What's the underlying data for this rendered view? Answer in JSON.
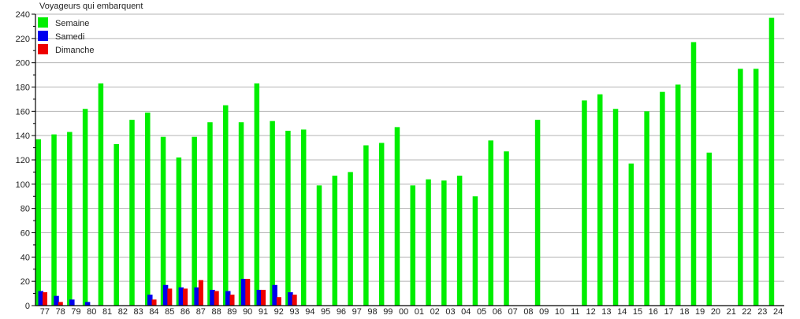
{
  "chart_data": {
    "type": "bar",
    "title": "Voyageurs qui embarquent",
    "xlabel": "",
    "ylabel": "",
    "ylim": [
      0,
      240
    ],
    "yticks": [
      0,
      20,
      40,
      60,
      80,
      100,
      120,
      140,
      160,
      180,
      200,
      220,
      240
    ],
    "grid": true,
    "legend_position": "top-left",
    "categories": [
      "77",
      "78",
      "79",
      "80",
      "81",
      "82",
      "83",
      "84",
      "85",
      "86",
      "87",
      "88",
      "89",
      "90",
      "91",
      "92",
      "93",
      "94",
      "95",
      "96",
      "97",
      "98",
      "99",
      "00",
      "01",
      "02",
      "03",
      "04",
      "05",
      "06",
      "07",
      "08",
      "09",
      "10",
      "11",
      "12",
      "13",
      "14",
      "15",
      "16",
      "17",
      "18",
      "19",
      "20",
      "21",
      "22",
      "23",
      "24"
    ],
    "series": [
      {
        "name": "Semaine",
        "color": "#00ee00",
        "values": [
          137,
          141,
          143,
          162,
          183,
          133,
          153,
          159,
          139,
          122,
          139,
          151,
          165,
          151,
          183,
          152,
          144,
          145,
          99,
          107,
          110,
          132,
          134,
          147,
          99,
          104,
          103,
          107,
          90,
          136,
          127,
          0,
          153,
          0,
          0,
          169,
          174,
          162,
          117,
          160,
          176,
          182,
          217,
          126,
          0,
          195,
          195,
          237
        ]
      },
      {
        "name": "Samedi",
        "color": "#0000ee",
        "values": [
          12,
          8,
          5,
          3,
          0,
          0,
          0,
          9,
          17,
          15,
          15,
          13,
          12,
          22,
          13,
          17,
          11,
          0,
          0,
          0,
          0,
          0,
          0,
          0,
          0,
          0,
          0,
          0,
          0,
          0,
          0,
          0,
          0,
          0,
          0,
          0,
          0,
          0,
          0,
          0,
          0,
          0,
          0,
          0,
          0,
          0,
          0,
          0
        ]
      },
      {
        "name": "Dimanche",
        "color": "#ee0000",
        "values": [
          11,
          3,
          0,
          0,
          0,
          0,
          0,
          5,
          14,
          14,
          21,
          12,
          9,
          22,
          13,
          7,
          9,
          0,
          0,
          0,
          0,
          0,
          0,
          0,
          0,
          0,
          0,
          0,
          0,
          0,
          0,
          0,
          0,
          0,
          0,
          0,
          0,
          0,
          0,
          0,
          0,
          0,
          0,
          0,
          0,
          0,
          0,
          0
        ]
      }
    ]
  }
}
